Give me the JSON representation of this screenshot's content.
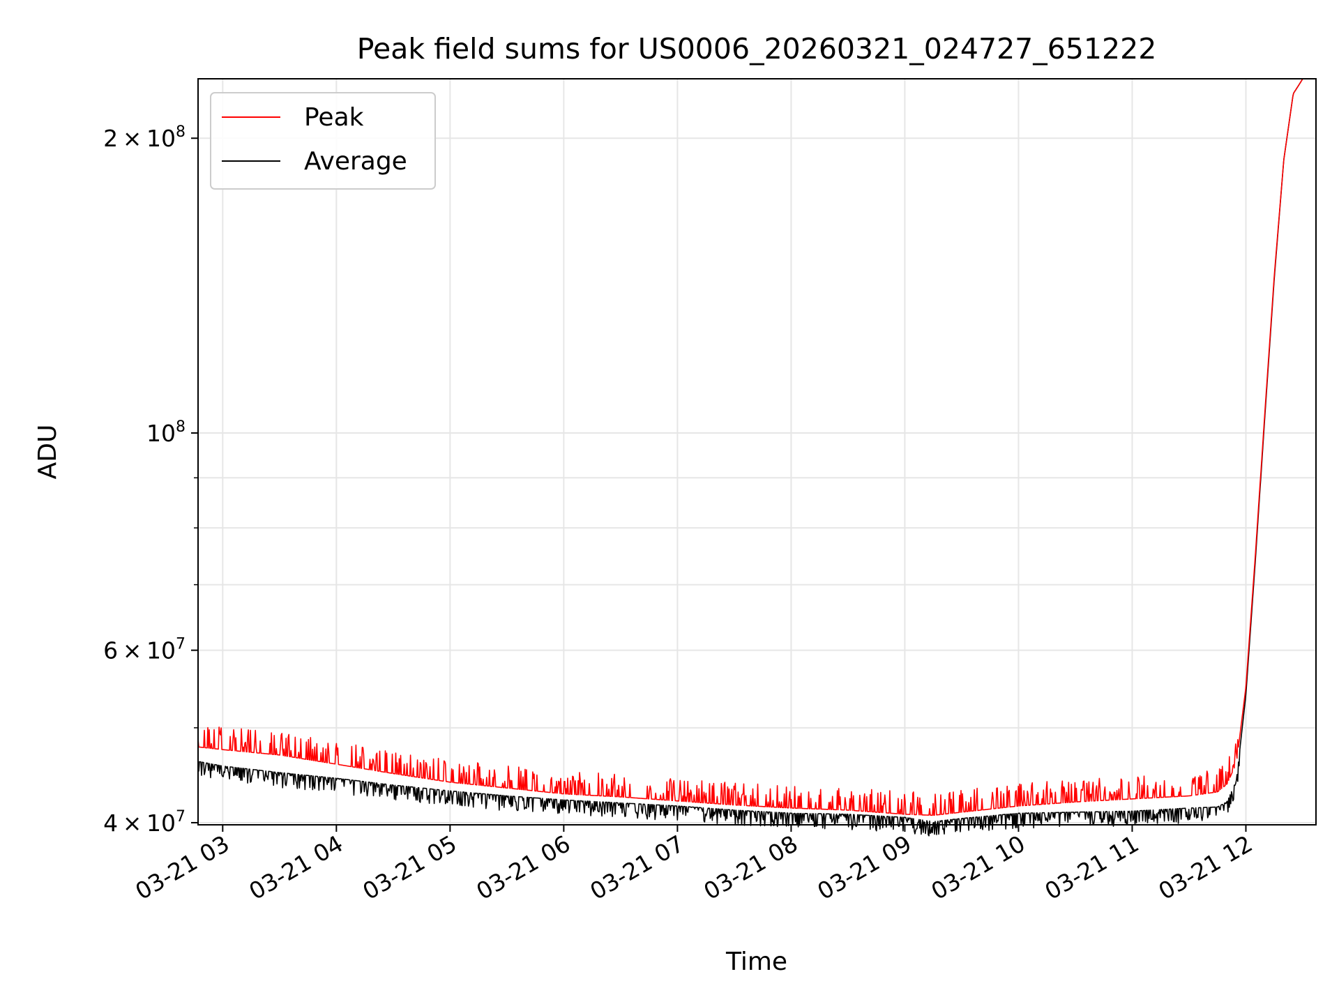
{
  "chart_data": {
    "type": "line",
    "title": "Peak field sums for US0006_20260321_024727_651222",
    "xlabel": "Time",
    "ylabel": "ADU",
    "y_scale": "log",
    "ylim": [
      39800000,
      230000000
    ],
    "xlim": [
      "2026-03-21 02:47",
      "2026-03-21 12:37"
    ],
    "grid": true,
    "legend_position": "upper left",
    "x_tick_labels": [
      "03-21 03",
      "03-21 04",
      "03-21 05",
      "03-21 06",
      "03-21 07",
      "03-21 08",
      "03-21 09",
      "03-21 10",
      "03-21 11",
      "03-21 12"
    ],
    "y_tick_labels": [
      {
        "value": 40000000,
        "mantissa": "4",
        "exponent": "7"
      },
      {
        "value": 60000000,
        "mantissa": "6",
        "exponent": "7"
      },
      {
        "value": 100000000,
        "mantissa": "",
        "exponent": "8"
      },
      {
        "value": 200000000,
        "mantissa": "2",
        "exponent": "8"
      }
    ],
    "y_minor_grid": [
      50000000,
      70000000,
      80000000,
      90000000
    ],
    "series": [
      {
        "name": "Peak",
        "color": "#ff0000",
        "spiky": true,
        "x": [
          "2026-03-21 02:47",
          "2026-03-21 03:00",
          "2026-03-21 03:30",
          "2026-03-21 04:00",
          "2026-03-21 04:30",
          "2026-03-21 05:00",
          "2026-03-21 05:30",
          "2026-03-21 06:00",
          "2026-03-21 06:30",
          "2026-03-21 07:00",
          "2026-03-21 07:30",
          "2026-03-21 08:00",
          "2026-03-21 08:30",
          "2026-03-21 09:00",
          "2026-03-21 09:15",
          "2026-03-21 09:30",
          "2026-03-21 10:00",
          "2026-03-21 10:30",
          "2026-03-21 11:00",
          "2026-03-21 11:30",
          "2026-03-21 11:45",
          "2026-03-21 11:50",
          "2026-03-21 11:55",
          "2026-03-21 12:00",
          "2026-03-21 12:05",
          "2026-03-21 12:10",
          "2026-03-21 12:15",
          "2026-03-21 12:20",
          "2026-03-21 12:25",
          "2026-03-21 12:30",
          "2026-03-21 12:37"
        ],
        "y": [
          47800000,
          47500000,
          46900000,
          45900000,
          44900000,
          44000000,
          43400000,
          42800000,
          42500000,
          42100000,
          41700000,
          41400000,
          41200000,
          40800000,
          40700000,
          41000000,
          41600000,
          42000000,
          42300000,
          42600000,
          43000000,
          43800000,
          46000000,
          55000000,
          75000000,
          105000000,
          145000000,
          190000000,
          222000000,
          230000000,
          230000000
        ]
      },
      {
        "name": "Average",
        "color": "#000000",
        "spiky": false,
        "x": [
          "2026-03-21 02:47",
          "2026-03-21 03:00",
          "2026-03-21 03:30",
          "2026-03-21 04:00",
          "2026-03-21 04:30",
          "2026-03-21 05:00",
          "2026-03-21 05:30",
          "2026-03-21 06:00",
          "2026-03-21 06:30",
          "2026-03-21 07:00",
          "2026-03-21 07:30",
          "2026-03-21 08:00",
          "2026-03-21 08:30",
          "2026-03-21 09:00",
          "2026-03-21 09:15",
          "2026-03-21 09:30",
          "2026-03-21 10:00",
          "2026-03-21 10:30",
          "2026-03-21 11:00",
          "2026-03-21 11:30",
          "2026-03-21 11:45",
          "2026-03-21 11:50",
          "2026-03-21 11:55",
          "2026-03-21 12:00",
          "2026-03-21 12:05",
          "2026-03-21 12:10",
          "2026-03-21 12:15",
          "2026-03-21 12:20",
          "2026-03-21 12:25",
          "2026-03-21 12:30",
          "2026-03-21 12:37"
        ],
        "y": [
          46200000,
          45700000,
          45000000,
          44400000,
          43700000,
          43100000,
          42600000,
          42200000,
          41900000,
          41600000,
          41200000,
          40900000,
          40800000,
          40500000,
          40100000,
          40400000,
          40900000,
          41000000,
          41100000,
          41400000,
          41500000,
          42000000,
          44200000,
          54000000,
          74000000,
          104000000,
          144000000,
          190000000,
          222000000,
          230000000,
          230000000
        ]
      }
    ]
  }
}
